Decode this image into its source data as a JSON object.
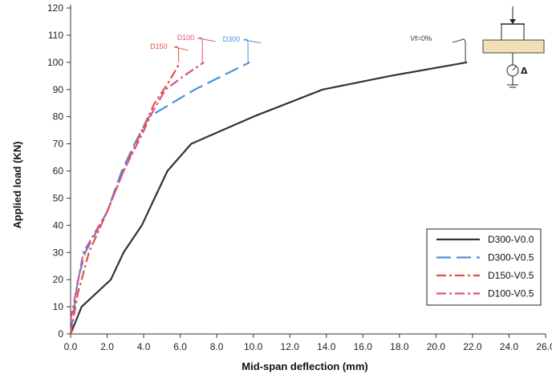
{
  "chart_data": {
    "type": "line",
    "xlabel": "Mid-span deflection  (mm)",
    "ylabel": "Applied load (KN)",
    "xlim": [
      0,
      26
    ],
    "ylim": [
      0,
      120
    ],
    "xticks": [
      "0.0",
      "2.0",
      "4.0",
      "6.0",
      "8.0",
      "10.0",
      "12.0",
      "14.0",
      "16.0",
      "18.0",
      "20.0",
      "22.0",
      "24.0",
      "26.0"
    ],
    "yticks": [
      "0",
      "10",
      "20",
      "30",
      "40",
      "50",
      "60",
      "70",
      "80",
      "90",
      "100",
      "110",
      "120"
    ],
    "legend_position": "bottom-right",
    "series": [
      {
        "name": "D300-V0.0",
        "color": "#333333",
        "dash": "solid",
        "x": [
          0,
          0.6,
          2.2,
          2.9,
          3.9,
          4.6,
          5.3,
          6.6,
          10.0,
          13.8,
          17.5,
          21.7
        ],
        "y": [
          0,
          10,
          20,
          30,
          40,
          50,
          60,
          70,
          80,
          90,
          95,
          100
        ]
      },
      {
        "name": "D300-V0.5",
        "color": "#4a8fe0",
        "dash": "long-dash",
        "x": [
          0,
          0.4,
          0.8,
          2.0,
          2.8,
          3.5,
          4.3,
          6.8,
          9.8
        ],
        "y": [
          0,
          20,
          30,
          45,
          60,
          70,
          80,
          90,
          100
        ]
      },
      {
        "name": "D150-V0.5",
        "color": "#e8503c",
        "dash": "dash-dot",
        "x": [
          0,
          0.4,
          1.0,
          2.0,
          2.9,
          3.9,
          4.6,
          5.3,
          6.0
        ],
        "y": [
          0,
          15,
          30,
          45,
          60,
          75,
          85,
          92,
          100
        ]
      },
      {
        "name": "D100-V0.5",
        "color": "#d8508e",
        "dash": "dash-dot",
        "x": [
          0,
          0.7,
          2.0,
          2.9,
          3.8,
          4.5,
          5.2,
          6.2,
          7.3
        ],
        "y": [
          5,
          30,
          45,
          60,
          72,
          82,
          90,
          95,
          100
        ]
      }
    ],
    "annotations": [
      {
        "text": "Vf=0%",
        "color": "#333333",
        "x": 21.7,
        "y": 100
      },
      {
        "text": "D300",
        "color": "#4a8fe0",
        "x": 9.8,
        "y": 100
      },
      {
        "text": "D100",
        "color": "#d8508e",
        "x": 7.3,
        "y": 100
      },
      {
        "text": "D150",
        "color": "#e8503c",
        "x": 6.0,
        "y": 100
      }
    ],
    "inset_diagram": {
      "label": "Δ"
    }
  }
}
